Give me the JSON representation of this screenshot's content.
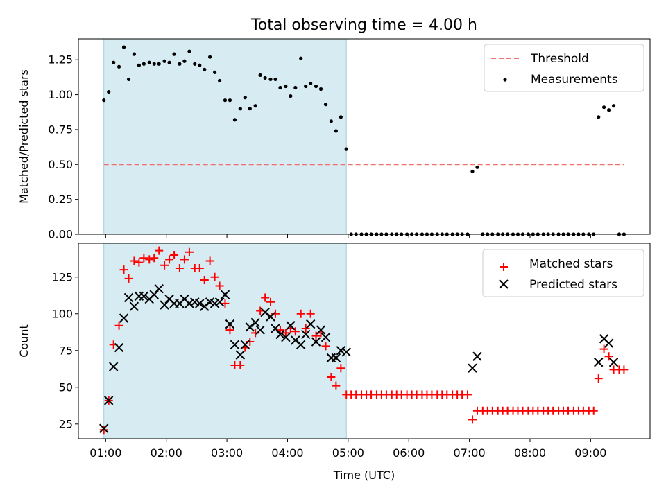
{
  "title": "Total observing time = 4.00 h",
  "colors": {
    "span": "#add8e6",
    "threshold": "#f07070",
    "matched": "#ff0000",
    "predicted": "#000000",
    "measurement": "#000000"
  },
  "chart_data": [
    {
      "type": "scatter",
      "ylabel": "Matched/Predicted stars",
      "xlim": [
        0.55,
        9.98
      ],
      "ylim": [
        0.0,
        1.4
      ],
      "yticks": [
        0.0,
        0.25,
        0.5,
        0.75,
        1.0,
        1.25
      ],
      "ytick_labels": [
        "0.00",
        "0.25",
        "0.50",
        "0.75",
        "1.00",
        "1.25"
      ],
      "shaded_span": [
        0.97,
        4.97
      ],
      "threshold": {
        "y": 0.5,
        "x": [
          0.97,
          9.55
        ]
      },
      "legend_placement": "upper right",
      "legend": {
        "threshold": "Threshold",
        "measurements": "Measurements"
      },
      "series": [
        {
          "name": "Measurements",
          "x": [
            0.97,
            1.05,
            1.13,
            1.22,
            1.3,
            1.38,
            1.47,
            1.55,
            1.63,
            1.72,
            1.8,
            1.88,
            1.97,
            2.05,
            2.13,
            2.22,
            2.3,
            2.38,
            2.47,
            2.55,
            2.63,
            2.72,
            2.8,
            2.88,
            2.97,
            3.05,
            3.13,
            3.22,
            3.3,
            3.38,
            3.47,
            3.55,
            3.63,
            3.72,
            3.8,
            3.88,
            3.97,
            4.05,
            4.13,
            4.22,
            4.3,
            4.38,
            4.47,
            4.55,
            4.63,
            4.72,
            4.8,
            4.88,
            4.97,
            5.05,
            5.13,
            5.22,
            5.3,
            5.38,
            5.47,
            5.55,
            5.63,
            5.72,
            5.8,
            5.88,
            5.97,
            6.05,
            6.13,
            6.22,
            6.3,
            6.38,
            6.47,
            6.55,
            6.63,
            6.72,
            6.8,
            6.88,
            6.97,
            7.05,
            7.13,
            7.22,
            7.3,
            7.38,
            7.47,
            7.55,
            7.63,
            7.72,
            7.8,
            7.88,
            7.97,
            8.05,
            8.13,
            8.22,
            8.3,
            8.38,
            8.47,
            8.55,
            8.63,
            8.72,
            8.8,
            8.88,
            8.97,
            9.05,
            9.13,
            9.22,
            9.3,
            9.38,
            9.47,
            9.55
          ],
          "y": [
            0.96,
            1.02,
            1.23,
            1.2,
            1.34,
            1.11,
            1.29,
            1.21,
            1.22,
            1.23,
            1.22,
            1.22,
            1.24,
            1.23,
            1.29,
            1.22,
            1.24,
            1.31,
            1.22,
            1.21,
            1.18,
            1.27,
            1.16,
            1.1,
            0.96,
            0.96,
            0.82,
            0.9,
            0.98,
            0.9,
            0.92,
            1.14,
            1.12,
            1.11,
            1.11,
            1.05,
            1.06,
            0.99,
            1.05,
            1.26,
            1.06,
            1.08,
            1.06,
            1.04,
            0.93,
            0.81,
            0.74,
            0.84,
            0.61,
            0,
            0,
            0,
            0,
            0,
            0,
            0,
            0,
            0,
            0,
            0,
            0,
            0,
            0,
            0,
            0,
            0,
            0,
            0,
            0,
            0,
            0,
            0,
            0,
            0.45,
            0.48,
            0,
            0,
            0,
            0,
            0,
            0,
            0,
            0,
            0,
            0,
            0,
            0,
            0,
            0,
            0,
            0,
            0,
            0,
            0,
            0,
            0,
            0,
            0,
            0.84,
            0.91,
            0.89,
            0.92,
            0,
            0
          ]
        }
      ]
    },
    {
      "type": "scatter",
      "xlabel": "Time (UTC)",
      "ylabel": "Count",
      "xlim": [
        0.55,
        9.98
      ],
      "ylim": [
        15,
        148
      ],
      "yticks": [
        25,
        50,
        75,
        100,
        125
      ],
      "ytick_labels": [
        "25",
        "50",
        "75",
        "100",
        "125"
      ],
      "xticks": [
        1,
        2,
        3,
        4,
        5,
        6,
        7,
        8,
        9
      ],
      "xtick_labels": [
        "01:00",
        "02:00",
        "03:00",
        "04:00",
        "05:00",
        "06:00",
        "07:00",
        "08:00",
        "09:00"
      ],
      "shaded_span": [
        0.97,
        4.97
      ],
      "legend_placement": "upper right",
      "series": [
        {
          "name": "Matched stars",
          "x": [
            0.97,
            1.05,
            1.13,
            1.22,
            1.3,
            1.38,
            1.47,
            1.55,
            1.63,
            1.72,
            1.8,
            1.88,
            1.97,
            2.05,
            2.13,
            2.22,
            2.3,
            2.38,
            2.47,
            2.55,
            2.63,
            2.72,
            2.8,
            2.88,
            2.97,
            3.05,
            3.13,
            3.22,
            3.3,
            3.38,
            3.47,
            3.55,
            3.63,
            3.72,
            3.8,
            3.88,
            3.97,
            4.05,
            4.13,
            4.22,
            4.3,
            4.38,
            4.47,
            4.55,
            4.63,
            4.72,
            4.8,
            4.88,
            4.97,
            5.05,
            5.13,
            5.22,
            5.3,
            5.38,
            5.47,
            5.55,
            5.63,
            5.72,
            5.8,
            5.88,
            5.97,
            6.05,
            6.13,
            6.22,
            6.3,
            6.38,
            6.47,
            6.55,
            6.63,
            6.72,
            6.8,
            6.88,
            6.97,
            7.05,
            7.13,
            7.22,
            7.3,
            7.38,
            7.47,
            7.55,
            7.63,
            7.72,
            7.8,
            7.88,
            7.97,
            8.05,
            8.13,
            8.22,
            8.3,
            8.38,
            8.47,
            8.55,
            8.63,
            8.72,
            8.8,
            8.88,
            8.97,
            9.05,
            9.13,
            9.22,
            9.3,
            9.38,
            9.47,
            9.55
          ],
          "y": [
            21,
            41,
            79,
            92,
            130,
            124,
            136,
            135,
            138,
            137,
            138,
            143,
            133,
            137,
            140,
            131,
            137,
            142,
            131,
            131,
            123,
            136,
            125,
            119,
            107,
            89,
            65,
            65,
            77,
            81,
            87,
            102,
            111,
            108,
            100,
            89,
            87,
            90,
            88,
            100,
            90,
            100,
            85,
            87,
            78,
            57,
            51,
            63,
            45,
            45,
            45,
            45,
            45,
            45,
            45,
            45,
            45,
            45,
            45,
            45,
            45,
            45,
            45,
            45,
            45,
            45,
            45,
            45,
            45,
            45,
            45,
            45,
            45,
            28,
            34,
            34,
            34,
            34,
            34,
            34,
            34,
            34,
            34,
            34,
            34,
            34,
            34,
            34,
            34,
            34,
            34,
            34,
            34,
            34,
            34,
            34,
            34,
            34,
            56,
            76,
            71,
            62,
            62,
            62
          ]
        },
        {
          "name": "Predicted stars",
          "x": [
            0.97,
            1.05,
            1.13,
            1.22,
            1.3,
            1.38,
            1.47,
            1.55,
            1.63,
            1.72,
            1.8,
            1.88,
            1.97,
            2.05,
            2.13,
            2.22,
            2.3,
            2.38,
            2.47,
            2.55,
            2.63,
            2.72,
            2.8,
            2.88,
            2.97,
            3.05,
            3.13,
            3.22,
            3.3,
            3.38,
            3.47,
            3.55,
            3.63,
            3.72,
            3.8,
            3.88,
            3.97,
            4.05,
            4.13,
            4.22,
            4.3,
            4.38,
            4.47,
            4.55,
            4.63,
            4.72,
            4.8,
            4.88,
            4.97,
            7.05,
            7.13,
            9.13,
            9.22,
            9.3,
            9.38
          ],
          "y": [
            22,
            41,
            64,
            77,
            97,
            111,
            105,
            112,
            112,
            110,
            113,
            117,
            106,
            110,
            107,
            107,
            110,
            107,
            108,
            107,
            105,
            108,
            107,
            108,
            113,
            93,
            79,
            72,
            79,
            91,
            94,
            89,
            101,
            98,
            90,
            86,
            84,
            92,
            82,
            79,
            86,
            93,
            81,
            89,
            84,
            70,
            70,
            75,
            74,
            63,
            71,
            67,
            83,
            80,
            67
          ]
        }
      ]
    }
  ]
}
